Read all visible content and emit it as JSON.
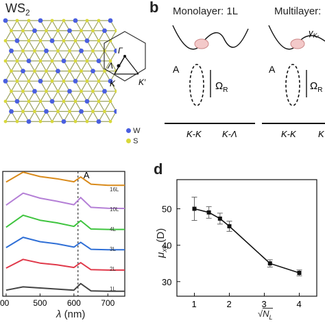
{
  "panel_a": {
    "title": "WS",
    "title_sub": "2",
    "legend_w": "W",
    "legend_s": "S",
    "bz": {
      "gamma": "Γ",
      "lambda": "Λ",
      "k": "K",
      "kprime": "K′"
    }
  },
  "panel_b": {
    "letter": "b",
    "mono_title": "Monolayer: 1L",
    "multi_title": "Multilayer:",
    "label_a": "A",
    "omega": "Ω",
    "omega_sub": "R",
    "axis_kk": "K-K",
    "axis_kl": "K-Λ",
    "gamma_label": "γ",
    "gamma_sub": "K-",
    "axis_k_partial": "K"
  },
  "panel_c": {
    "peak_label": "A",
    "xlabel_sym": "λ",
    "xlabel_unit": "(nm)",
    "x_ticks": [
      "00",
      "500",
      "600",
      "700"
    ],
    "colors": [
      "#d98a1a",
      "#b47fd6",
      "#3ec43e",
      "#2f6fd6",
      "#e0394a",
      "#444444"
    ],
    "chart_data": {
      "type": "line",
      "x": [
        400,
        450,
        500,
        550,
        600,
        620,
        650,
        700,
        750
      ],
      "xlim": [
        390,
        750
      ],
      "dashed_line_x": 612,
      "series": [
        {
          "name": "16L",
          "values": [
            0.55,
            1.0,
            0.8,
            0.7,
            0.56,
            0.78,
            0.45,
            0.4,
            0.4
          ]
        },
        {
          "name": "10L",
          "values": [
            0.4,
            0.95,
            0.72,
            0.58,
            0.42,
            0.75,
            0.3,
            0.26,
            0.25
          ]
        },
        {
          "name": "4L",
          "values": [
            0.3,
            0.85,
            0.62,
            0.5,
            0.34,
            0.6,
            0.22,
            0.2,
            0.2
          ]
        },
        {
          "name": "3L",
          "values": [
            0.28,
            0.75,
            0.55,
            0.45,
            0.3,
            0.52,
            0.2,
            0.18,
            0.18
          ]
        },
        {
          "name": "2L",
          "values": [
            0.25,
            0.65,
            0.48,
            0.4,
            0.28,
            0.5,
            0.18,
            0.16,
            0.16
          ]
        },
        {
          "name": "1L",
          "values": [
            0.15,
            0.3,
            0.25,
            0.2,
            0.15,
            0.45,
            0.12,
            0.1,
            0.1
          ]
        }
      ]
    }
  },
  "panel_d": {
    "letter": "d",
    "ylabel_sym": "μ",
    "ylabel_sub": "xy",
    "ylabel_unit": "(D)",
    "xlabel_sym": "N",
    "xlabel_sub": "L",
    "y_ticks": [
      "30",
      "40",
      "50"
    ],
    "x_ticks": [
      "1",
      "2",
      "3",
      "4"
    ],
    "chart_data": {
      "type": "line",
      "x": [
        1.0,
        1.414,
        1.732,
        2.0,
        3.162,
        4.0
      ],
      "y": [
        50.0,
        49.0,
        47.3,
        45.2,
        35.0,
        32.4
      ],
      "yerr": [
        3.2,
        1.6,
        1.5,
        1.4,
        1.0,
        0.8
      ],
      "xlim": [
        0.5,
        4.5
      ],
      "ylim": [
        26,
        58
      ]
    }
  }
}
